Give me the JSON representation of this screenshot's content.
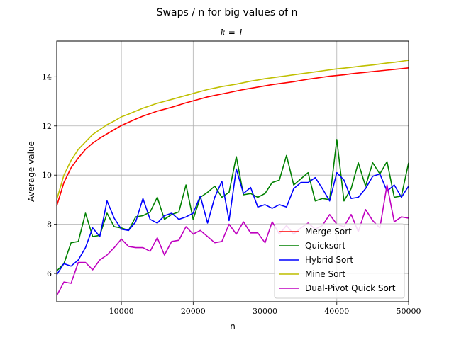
{
  "chart_data": {
    "type": "line",
    "title": "Swaps / n for big values of n",
    "subtitle": "k = 1",
    "xlabel": "n",
    "ylabel": "Average value",
    "xlim": [
      1000,
      50000
    ],
    "ylim": [
      4.85,
      15.45
    ],
    "xticks": [
      10000,
      20000,
      30000,
      40000,
      50000
    ],
    "yticks": [
      6,
      8,
      10,
      12,
      14
    ],
    "grid": true,
    "legend_position": "lower-right",
    "x": [
      1000,
      2000,
      3000,
      4000,
      5000,
      6000,
      7000,
      8000,
      9000,
      10000,
      11000,
      12000,
      13000,
      14000,
      15000,
      16000,
      17000,
      18000,
      19000,
      20000,
      21000,
      22000,
      23000,
      24000,
      25000,
      26000,
      27000,
      28000,
      29000,
      30000,
      31000,
      32000,
      33000,
      34000,
      35000,
      36000,
      37000,
      38000,
      39000,
      40000,
      41000,
      42000,
      43000,
      44000,
      45000,
      46000,
      47000,
      48000,
      49000,
      50000
    ],
    "series": [
      {
        "name": "Merge Sort",
        "color": "#ff0000",
        "values": [
          8.75,
          9.7,
          10.3,
          10.7,
          11.05,
          11.3,
          11.5,
          11.68,
          11.85,
          12.02,
          12.15,
          12.28,
          12.4,
          12.5,
          12.6,
          12.68,
          12.76,
          12.85,
          12.94,
          13.02,
          13.1,
          13.18,
          13.24,
          13.3,
          13.36,
          13.42,
          13.48,
          13.53,
          13.58,
          13.63,
          13.68,
          13.72,
          13.76,
          13.8,
          13.85,
          13.9,
          13.94,
          13.98,
          14.02,
          14.05,
          14.08,
          14.12,
          14.15,
          14.18,
          14.21,
          14.24,
          14.27,
          14.3,
          14.33,
          14.36
        ]
      },
      {
        "name": "Quicksort",
        "color": "#008000",
        "values": [
          6.1,
          6.4,
          7.25,
          7.3,
          8.45,
          7.5,
          7.55,
          8.45,
          7.9,
          7.85,
          7.75,
          8.3,
          8.35,
          8.5,
          9.1,
          8.2,
          8.4,
          8.5,
          9.6,
          8.2,
          9.1,
          9.3,
          9.55,
          9.1,
          9.3,
          10.75,
          9.2,
          9.25,
          9.1,
          9.25,
          9.7,
          9.8,
          10.8,
          9.6,
          9.85,
          10.1,
          8.95,
          9.05,
          9.0,
          11.45,
          8.95,
          9.45,
          10.5,
          9.55,
          10.5,
          10.05,
          10.55,
          9.1,
          9.15,
          10.5
        ]
      },
      {
        "name": "Hybrid Sort",
        "color": "#0000ff",
        "values": [
          5.95,
          6.4,
          6.3,
          6.55,
          7.05,
          7.85,
          7.5,
          8.95,
          8.25,
          7.8,
          7.75,
          8.1,
          9.05,
          8.2,
          8.05,
          8.35,
          8.45,
          8.2,
          8.3,
          8.45,
          9.15,
          8.05,
          9.1,
          9.75,
          8.15,
          10.25,
          9.25,
          9.5,
          8.7,
          8.8,
          8.65,
          8.8,
          8.7,
          9.45,
          9.7,
          9.7,
          9.9,
          9.45,
          8.95,
          10.1,
          9.8,
          9.05,
          9.1,
          9.45,
          9.95,
          10.05,
          9.35,
          9.6,
          9.1,
          9.55
        ]
      },
      {
        "name": "Mine Sort",
        "color": "#bfbf00",
        "values": [
          9.0,
          10.0,
          10.6,
          11.05,
          11.35,
          11.65,
          11.85,
          12.05,
          12.2,
          12.37,
          12.48,
          12.6,
          12.72,
          12.82,
          12.92,
          13.0,
          13.08,
          13.16,
          13.24,
          13.32,
          13.4,
          13.48,
          13.54,
          13.6,
          13.65,
          13.7,
          13.76,
          13.82,
          13.87,
          13.92,
          13.96,
          14.0,
          14.04,
          14.08,
          14.12,
          14.16,
          14.2,
          14.24,
          14.28,
          14.32,
          14.35,
          14.38,
          14.42,
          14.45,
          14.48,
          14.52,
          14.56,
          14.59,
          14.63,
          14.67
        ]
      },
      {
        "name": "Dual-Pivot Quick Sort",
        "color": "#bf00bf",
        "values": [
          5.1,
          5.65,
          5.6,
          6.45,
          6.45,
          6.15,
          6.55,
          6.75,
          7.05,
          7.4,
          7.1,
          7.05,
          7.05,
          6.9,
          7.45,
          6.75,
          7.3,
          7.35,
          7.9,
          7.6,
          7.75,
          7.5,
          7.25,
          7.3,
          8.0,
          7.6,
          8.1,
          7.65,
          7.65,
          7.25,
          8.1,
          7.6,
          7.95,
          7.6,
          7.85,
          8.05,
          7.8,
          7.95,
          8.4,
          8.0,
          7.9,
          8.4,
          7.7,
          8.6,
          8.15,
          7.85,
          9.6,
          8.1,
          8.3,
          8.25
        ]
      }
    ]
  }
}
